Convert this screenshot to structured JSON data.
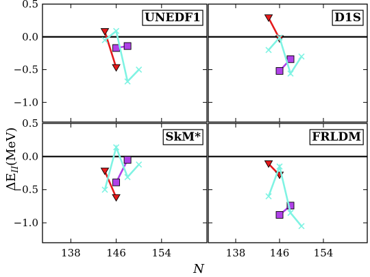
{
  "chart_data": {
    "type": "line",
    "xlabel": "N",
    "ylabel": "ΔE_II (MeV)",
    "ylabel_main": "ΔE",
    "ylabel_sub": "II",
    "ylabel_unit": "(MeV)",
    "xlim": [
      133,
      162
    ],
    "x_ticks": [
      138,
      146,
      154
    ],
    "x_tick_labels": [
      "138",
      "146",
      "154"
    ],
    "ylim": [
      -1.3,
      0.5
    ],
    "y_ticks": [
      0.5,
      0.0,
      -0.5,
      -1.0
    ],
    "y_tick_labels_top": [
      "0.5",
      "0.0",
      "−0.5",
      "−1.0"
    ],
    "y_tick_labels_bottom": [
      "0.5",
      "0.0",
      "−0.5",
      "−1.0"
    ],
    "zero_line": 0.0,
    "colors": {
      "red": "#e41a1c",
      "purple": "#b041e8",
      "cyan": "#7ff3e3"
    },
    "panels": [
      {
        "label": "UNEDF1",
        "series": [
          {
            "color": "red",
            "marker": "triangle-down",
            "x": [
              144,
              146
            ],
            "y": [
              0.08,
              -0.47
            ]
          },
          {
            "color": "purple",
            "marker": "square",
            "x": [
              146,
              148
            ],
            "y": [
              -0.17,
              -0.14
            ]
          },
          {
            "color": "cyan",
            "marker": "x",
            "x": [
              144,
              146,
              148,
              150
            ],
            "y": [
              -0.05,
              0.09,
              -0.68,
              -0.5
            ]
          }
        ]
      },
      {
        "label": "D1S",
        "series": [
          {
            "color": "red",
            "marker": "triangle-down",
            "x": [
              144,
              146
            ],
            "y": [
              0.29,
              -0.03
            ]
          },
          {
            "color": "purple",
            "marker": "square",
            "x": [
              146,
              148
            ],
            "y": [
              -0.52,
              -0.34
            ]
          },
          {
            "color": "cyan",
            "marker": "x",
            "x": [
              144,
              146,
              148,
              150
            ],
            "y": [
              -0.2,
              -0.01,
              -0.56,
              -0.3
            ]
          }
        ]
      },
      {
        "label": "SkM*",
        "series": [
          {
            "color": "red",
            "marker": "triangle-down",
            "x": [
              144,
              146
            ],
            "y": [
              -0.22,
              -0.62
            ]
          },
          {
            "color": "purple",
            "marker": "square",
            "x": [
              146,
              148
            ],
            "y": [
              -0.39,
              -0.05
            ]
          },
          {
            "color": "cyan",
            "marker": "x",
            "x": [
              144,
              146,
              148,
              150
            ],
            "y": [
              -0.5,
              0.14,
              -0.31,
              -0.12
            ]
          }
        ]
      },
      {
        "label": "FRLDM",
        "series": [
          {
            "color": "red",
            "marker": "triangle-down",
            "x": [
              144,
              146
            ],
            "y": [
              -0.11,
              -0.28
            ]
          },
          {
            "color": "purple",
            "marker": "square",
            "x": [
              146,
              148
            ],
            "y": [
              -0.88,
              -0.74
            ]
          },
          {
            "color": "cyan",
            "marker": "x",
            "x": [
              144,
              146,
              148,
              150
            ],
            "y": [
              -0.6,
              -0.15,
              -0.85,
              -1.05
            ]
          }
        ]
      }
    ]
  }
}
